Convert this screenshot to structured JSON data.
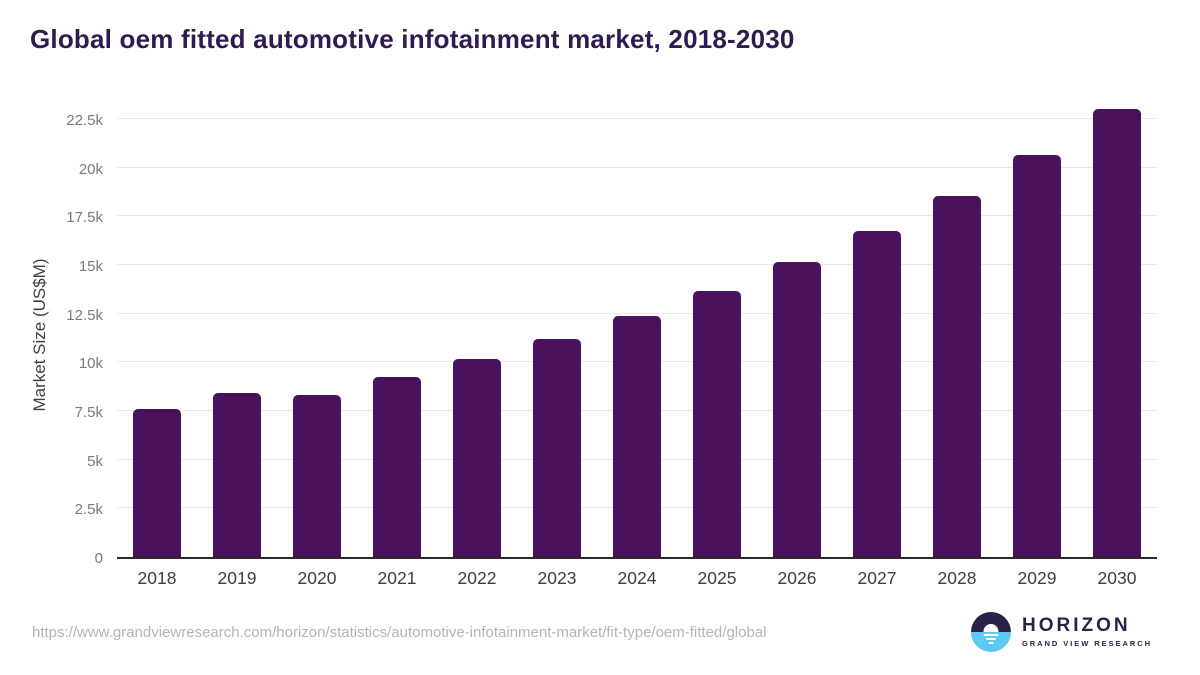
{
  "page": {
    "title": "Global oem fitted automotive infotainment market, 2018-2030"
  },
  "chart_data": {
    "type": "bar",
    "title": "Global oem fitted automotive infotainment market, 2018-2030",
    "categories": [
      "2018",
      "2019",
      "2020",
      "2021",
      "2022",
      "2023",
      "2024",
      "2025",
      "2026",
      "2027",
      "2028",
      "2029",
      "2030"
    ],
    "values": [
      7600,
      8430,
      8310,
      9250,
      10190,
      11210,
      12360,
      13680,
      15150,
      16730,
      18560,
      20650,
      23050
    ],
    "xlabel": "",
    "ylabel": "Market Size (US$M)",
    "ylim": [
      0,
      22500
    ],
    "ytick_values": [
      0,
      2500,
      5000,
      7500,
      10000,
      12500,
      15000,
      17500,
      20000,
      22500
    ],
    "ytick_labels": [
      "0",
      "2.5k",
      "5k",
      "7.5k",
      "10k",
      "12.5k",
      "15k",
      "17.5k",
      "20k",
      "22.5k"
    ],
    "grid": "horizontal",
    "legend": "none",
    "bar_color": "#4a115c"
  },
  "colors": {
    "bar": "#4a115c",
    "title": "#2f1b4f",
    "gridline": "#e9e9e9",
    "axis_line": "#2b2b2b",
    "y_tick_text": "#7a7a7a",
    "x_tick_text": "#3d3d3d",
    "url_text": "#b5b5b5",
    "logo_purple": "#2d2148",
    "logo_blue": "#5ec7f2"
  },
  "footer": {
    "source_url": "https://www.grandviewresearch.com/horizon/statistics/automotive-infotainment-market/fit-type/oem-fitted/global",
    "logo": {
      "name": "HORIZON",
      "tagline": "GRAND VIEW RESEARCH"
    }
  }
}
